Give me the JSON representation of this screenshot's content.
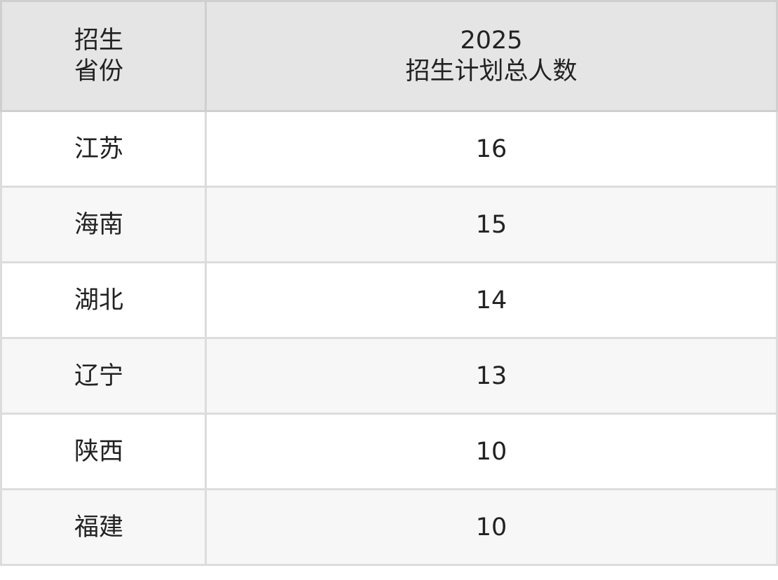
{
  "table": {
    "header": {
      "province": [
        "招生",
        "省份"
      ],
      "total": [
        "2025",
        "招生计划总人数"
      ]
    },
    "rows": [
      {
        "province": "江苏",
        "total": "16"
      },
      {
        "province": "海南",
        "total": "15"
      },
      {
        "province": "湖北",
        "total": "14"
      },
      {
        "province": "辽宁",
        "total": "13"
      },
      {
        "province": "陕西",
        "total": "10"
      },
      {
        "province": "福建",
        "total": "10"
      }
    ]
  }
}
